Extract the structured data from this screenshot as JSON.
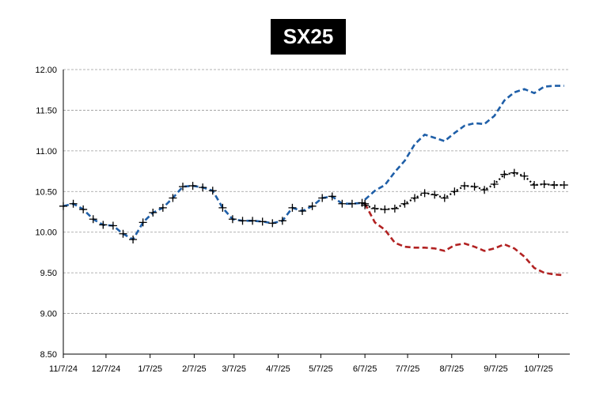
{
  "chart_data": {
    "type": "line",
    "title": "SX25",
    "xlabel": "",
    "ylabel": "",
    "ylim": [
      8.5,
      12.0
    ],
    "y_ticks": [
      "12.00",
      "11.50",
      "11.00",
      "10.50",
      "10.00",
      "9.50",
      "9.00",
      "8.50"
    ],
    "x_ticks": [
      "11/7/24",
      "12/7/24",
      "1/7/25",
      "2/7/25",
      "3/7/25",
      "4/7/25",
      "5/7/25",
      "6/7/25",
      "7/7/25",
      "8/7/25",
      "9/7/25",
      "10/7/25"
    ],
    "x_tick_dates": [
      "2024-11-07",
      "2024-12-07",
      "2025-01-07",
      "2025-02-07",
      "2025-03-07",
      "2025-04-07",
      "2025-05-07",
      "2025-06-07",
      "2025-07-07",
      "2025-08-07",
      "2025-09-07",
      "2025-10-07"
    ],
    "grid": true,
    "colors": {
      "history": "#1f5fa8",
      "upper": "#1f5fa8",
      "lower": "#b22222",
      "mid": "#000000"
    },
    "series": [
      {
        "style": "dashed",
        "x": [
          "2024-11-07",
          "2024-11-14",
          "2024-11-21",
          "2024-11-28",
          "2024-12-05",
          "2024-12-12",
          "2024-12-19",
          "2024-12-26",
          "2025-01-02",
          "2025-01-09",
          "2025-01-16",
          "2025-01-23",
          "2025-01-30",
          "2025-02-06",
          "2025-02-13",
          "2025-02-20",
          "2025-02-27",
          "2025-03-06",
          "2025-03-13",
          "2025-03-20",
          "2025-03-27",
          "2025-04-03",
          "2025-04-10",
          "2025-04-17",
          "2025-04-24",
          "2025-05-01",
          "2025-05-08",
          "2025-05-15",
          "2025-05-22",
          "2025-05-29",
          "2025-06-05",
          "2025-06-07"
        ],
        "values": [
          10.32,
          10.35,
          10.28,
          10.16,
          10.09,
          10.08,
          9.98,
          9.91,
          10.12,
          10.24,
          10.3,
          10.42,
          10.56,
          10.57,
          10.55,
          10.51,
          10.3,
          10.16,
          10.14,
          10.14,
          10.13,
          10.11,
          10.14,
          10.3,
          10.26,
          10.32,
          10.42,
          10.44,
          10.35,
          10.35,
          10.36,
          10.35
        ]
      },
      {
        "style": "dashed",
        "x": [
          "2025-06-07",
          "2025-06-14",
          "2025-06-21",
          "2025-06-28",
          "2025-07-05",
          "2025-07-12",
          "2025-07-19",
          "2025-07-26",
          "2025-08-02",
          "2025-08-09",
          "2025-08-16",
          "2025-08-23",
          "2025-08-30",
          "2025-09-06",
          "2025-09-13",
          "2025-09-20",
          "2025-09-27",
          "2025-10-04",
          "2025-10-11",
          "2025-10-18",
          "2025-10-25"
        ],
        "values": [
          10.4,
          10.51,
          10.58,
          10.74,
          10.88,
          11.08,
          11.2,
          11.16,
          11.12,
          11.22,
          11.31,
          11.34,
          11.33,
          11.43,
          11.62,
          11.72,
          11.76,
          11.71,
          11.79,
          11.8,
          11.8
        ]
      },
      {
        "style": "dashed",
        "x": [
          "2025-06-07",
          "2025-06-14",
          "2025-06-21",
          "2025-06-28",
          "2025-07-05",
          "2025-07-12",
          "2025-07-19",
          "2025-07-26",
          "2025-08-02",
          "2025-08-09",
          "2025-08-16",
          "2025-08-23",
          "2025-08-30",
          "2025-09-06",
          "2025-09-13",
          "2025-09-20",
          "2025-09-27",
          "2025-10-04",
          "2025-10-11",
          "2025-10-18",
          "2025-10-25"
        ],
        "values": [
          10.35,
          10.12,
          10.03,
          9.87,
          9.82,
          9.81,
          9.81,
          9.8,
          9.77,
          9.84,
          9.86,
          9.82,
          9.77,
          9.8,
          9.85,
          9.8,
          9.7,
          9.56,
          9.5,
          9.48,
          9.47
        ]
      },
      {
        "style": "dotted-markers",
        "x": [
          "2025-06-07",
          "2025-06-14",
          "2025-06-21",
          "2025-06-28",
          "2025-07-05",
          "2025-07-12",
          "2025-07-19",
          "2025-07-26",
          "2025-08-02",
          "2025-08-09",
          "2025-08-16",
          "2025-08-23",
          "2025-08-30",
          "2025-09-06",
          "2025-09-13",
          "2025-09-20",
          "2025-09-27",
          "2025-10-04",
          "2025-10-11",
          "2025-10-18",
          "2025-10-25"
        ],
        "values": [
          10.33,
          10.29,
          10.28,
          10.29,
          10.35,
          10.42,
          10.48,
          10.46,
          10.42,
          10.5,
          10.57,
          10.56,
          10.52,
          10.59,
          10.71,
          10.73,
          10.69,
          10.58,
          10.59,
          10.58,
          10.58
        ]
      }
    ]
  }
}
